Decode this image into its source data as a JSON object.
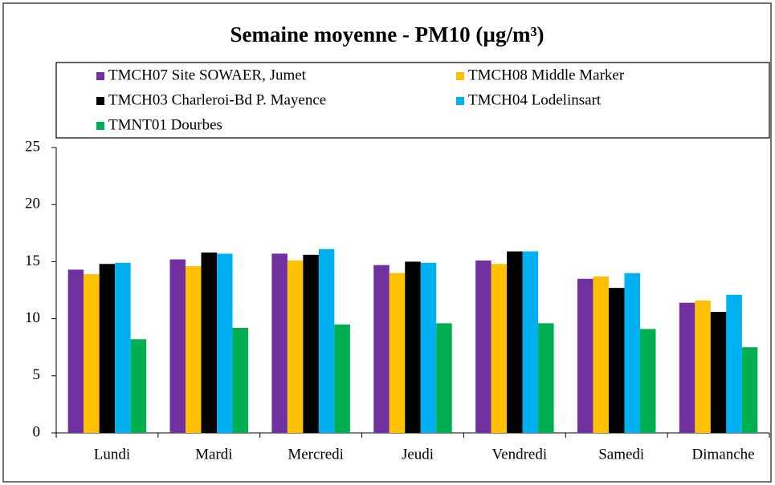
{
  "chart_data": {
    "type": "bar",
    "title": "Semaine moyenne - PM10 (µg/m³)",
    "categories": [
      "Lundi",
      "Mardi",
      "Mercredi",
      "Jeudi",
      "Vendredi",
      "Samedi",
      "Dimanche"
    ],
    "series": [
      {
        "name": "TMCH07 Site SOWAER, Jumet",
        "color": "#7030a0",
        "values": [
          14.3,
          15.2,
          15.7,
          14.7,
          15.1,
          13.5,
          11.4
        ]
      },
      {
        "name": "TMCH08 Middle Marker",
        "color": "#ffc000",
        "values": [
          13.9,
          14.6,
          15.1,
          14.0,
          14.8,
          13.7,
          11.6
        ]
      },
      {
        "name": "TMCH03 Charleroi-Bd P. Mayence",
        "color": "#000000",
        "values": [
          14.8,
          15.8,
          15.6,
          15.0,
          15.9,
          12.7,
          10.6
        ]
      },
      {
        "name": "TMCH04 Lodelinsart",
        "color": "#00b0f0",
        "values": [
          14.9,
          15.7,
          16.1,
          14.9,
          15.9,
          14.0,
          12.1
        ]
      },
      {
        "name": "TMNT01 Dourbes",
        "color": "#00b050",
        "values": [
          8.2,
          9.2,
          9.5,
          9.6,
          9.6,
          9.1,
          7.5
        ]
      }
    ],
    "ylim": [
      0,
      25
    ],
    "yticks": [
      0,
      5,
      10,
      15,
      20,
      25
    ],
    "grid": false,
    "legend": "top"
  }
}
